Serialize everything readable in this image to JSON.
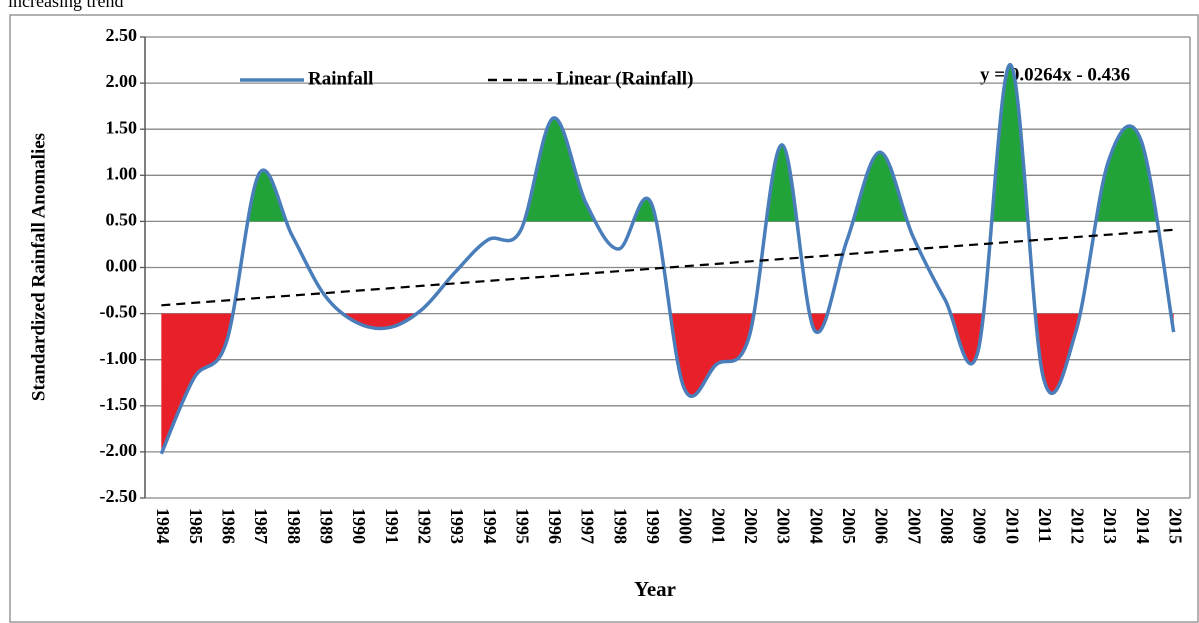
{
  "caption": "increasing trend",
  "chart_data": {
    "type": "line",
    "x_label": "Year",
    "y_label": "Standardized Rainfall Anomalies",
    "annotation": "y = 0.0264x - 0.436",
    "categories": [
      "1984",
      "1985",
      "1986",
      "1987",
      "1988",
      "1989",
      "1990",
      "1991",
      "1992",
      "1993",
      "1994",
      "1995",
      "1996",
      "1997",
      "1998",
      "1999",
      "2000",
      "2001",
      "2002",
      "2003",
      "2004",
      "2005",
      "2006",
      "2007",
      "2008",
      "2009",
      "2010",
      "2011",
      "2012",
      "2013",
      "2014",
      "2015"
    ],
    "series": [
      {
        "name": "Rainfall",
        "color": "#4a7ebb",
        "style": "solid",
        "values": [
          -2.02,
          -1.2,
          -0.8,
          1.02,
          0.35,
          -0.3,
          -0.6,
          -0.65,
          -0.45,
          -0.05,
          0.3,
          0.4,
          1.62,
          0.7,
          0.2,
          0.7,
          -1.3,
          -1.05,
          -0.75,
          1.33,
          -0.68,
          0.3,
          1.25,
          0.35,
          -0.35,
          -0.92,
          2.2,
          -1.18,
          -0.7,
          1.15,
          1.38,
          -0.7
        ]
      },
      {
        "name": "Linear (Rainfall)",
        "color": "#000000",
        "style": "dashed",
        "values": [
          -0.41,
          -0.383,
          -0.357,
          -0.33,
          -0.304,
          -0.278,
          -0.251,
          -0.225,
          -0.198,
          -0.172,
          -0.146,
          -0.119,
          -0.093,
          -0.066,
          -0.04,
          -0.014,
          0.013,
          0.039,
          0.066,
          0.092,
          0.118,
          0.145,
          0.171,
          0.198,
          0.224,
          0.25,
          0.277,
          0.303,
          0.33,
          0.356,
          0.382,
          0.409
        ]
      }
    ],
    "shade_above": {
      "value": 0.5,
      "color": "#22a33a"
    },
    "shade_below": {
      "value": -0.5,
      "color": "#e8202a"
    },
    "ylim": [
      -2.5,
      2.5
    ],
    "yticks": [
      {
        "value": -2.5,
        "label": "-2.50"
      },
      {
        "value": -2,
        "label": "-2.00"
      },
      {
        "value": -1.5,
        "label": "-1.50"
      },
      {
        "value": -1,
        "label": "-1.00"
      },
      {
        "value": -0.5,
        "label": "-0.50"
      },
      {
        "value": 0,
        "label": "0.00"
      },
      {
        "value": 0.5,
        "label": "0.50"
      },
      {
        "value": 1,
        "label": "1.00"
      },
      {
        "value": 1.5,
        "label": "1.50"
      },
      {
        "value": 2,
        "label": "2.00"
      },
      {
        "value": 2.5,
        "label": "2.50"
      }
    ],
    "grid": true,
    "legend": "top",
    "smooth": true
  }
}
